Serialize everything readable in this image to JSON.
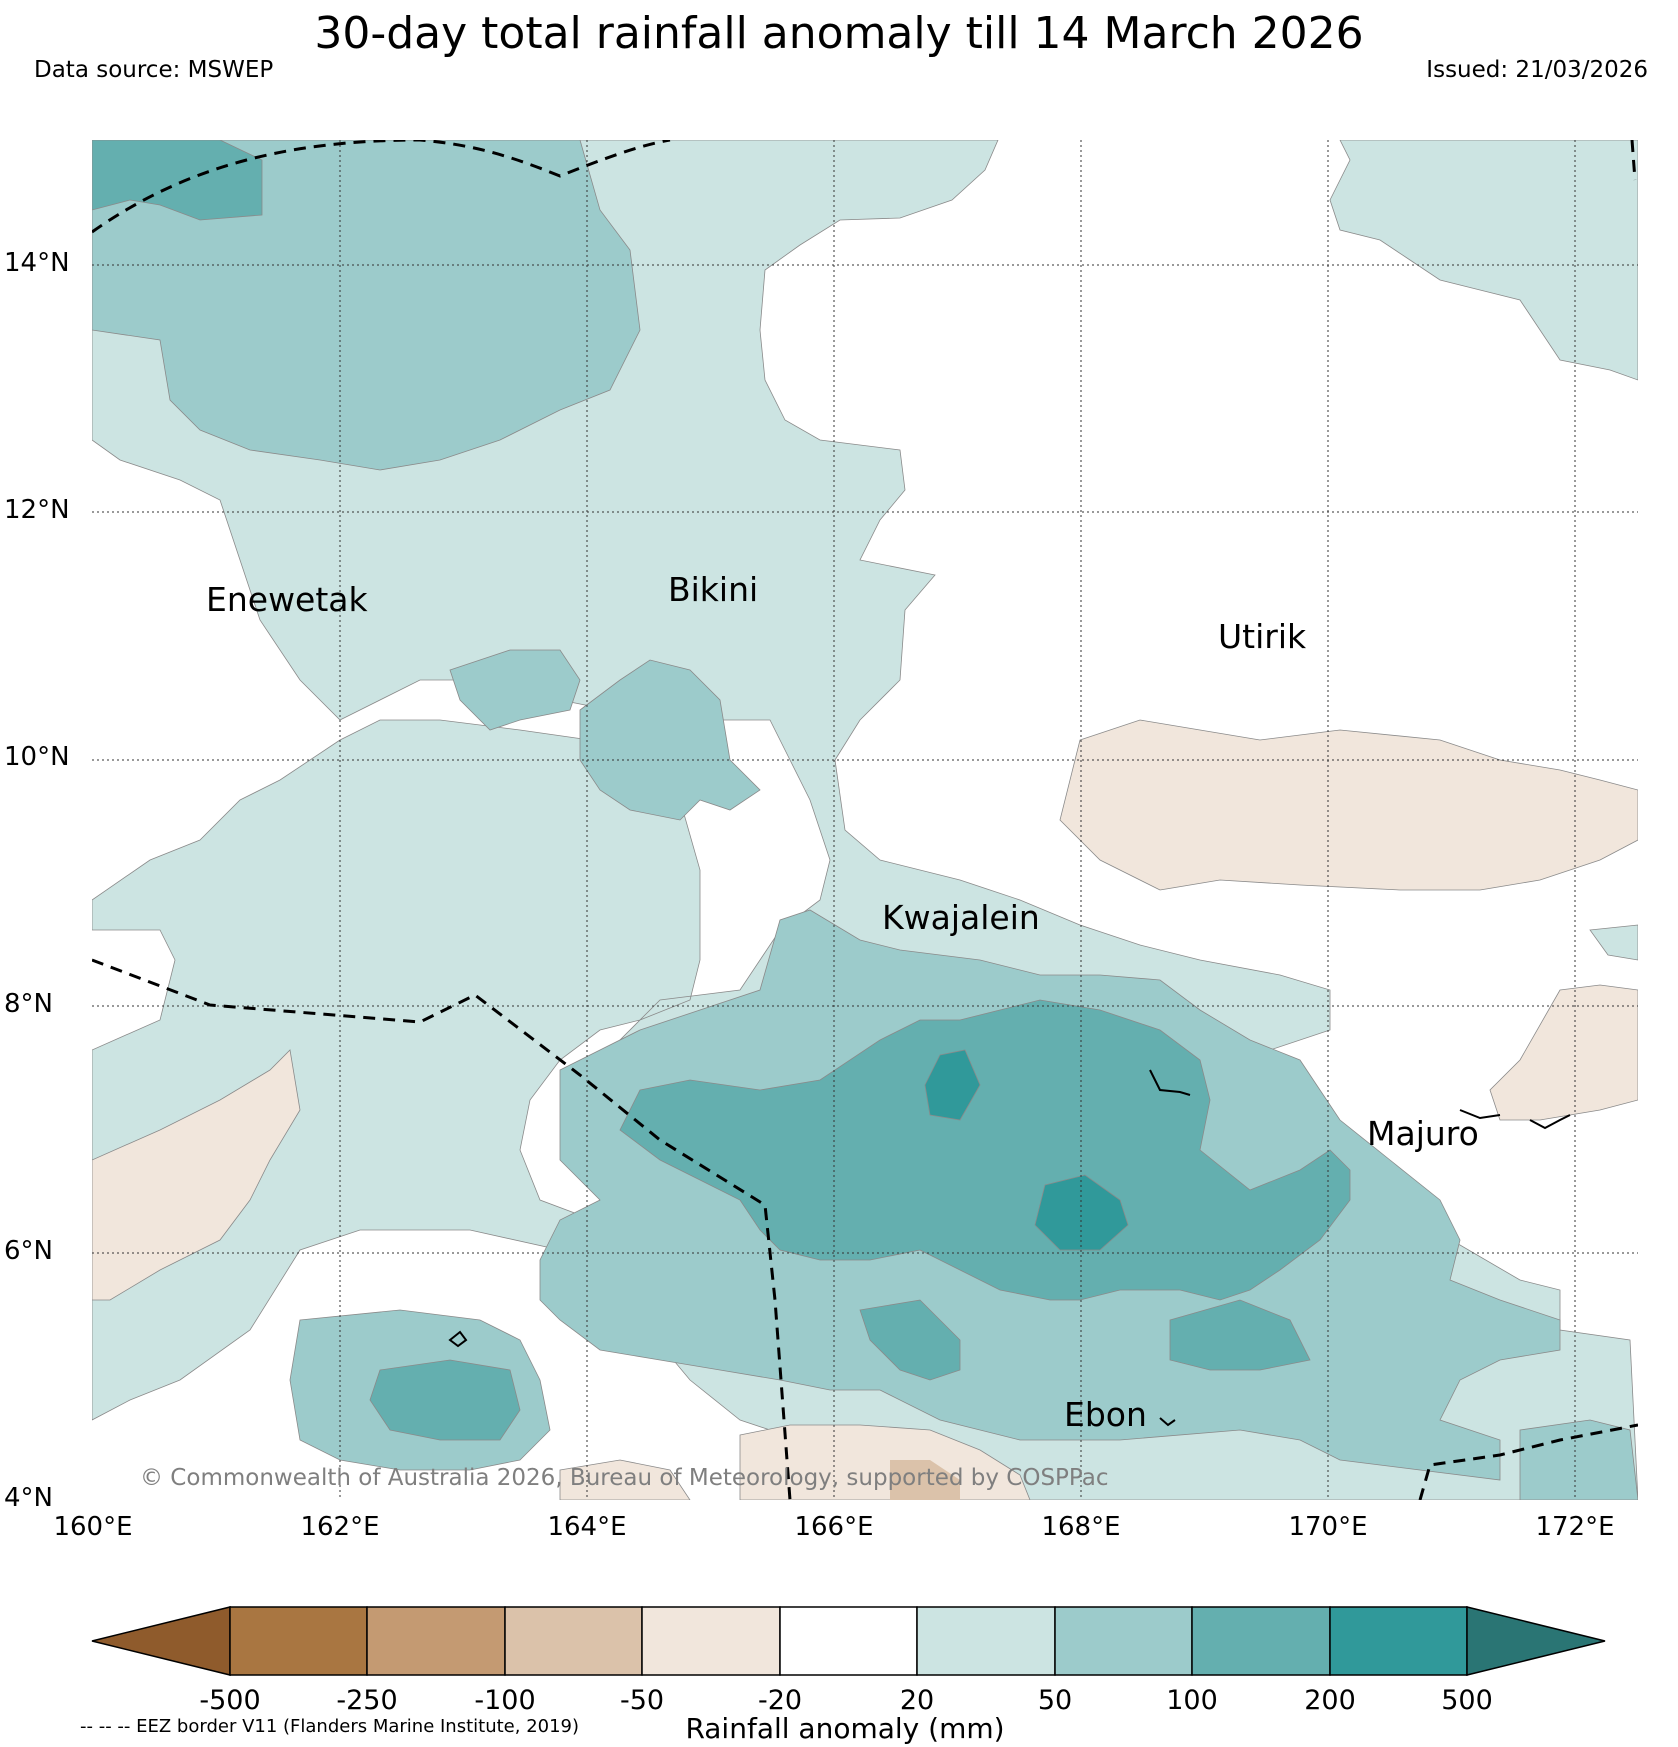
{
  "title": "30-day total rainfall anomaly till 14 March 2026",
  "data_source": "Data source: MSWEP",
  "issued": "Issued: 21/03/2026",
  "copyright": "© Commonwealth of Australia 2026, Bureau of Meteorology, supported by COSPPac",
  "map": {
    "lat_labels": [
      "14°N",
      "12°N",
      "10°N",
      "8°N",
      "6°N",
      "4°N"
    ],
    "lon_labels": [
      "160°E",
      "162°E",
      "164°E",
      "166°E",
      "168°E",
      "170°E",
      "172°E"
    ],
    "places": [
      "Enewetak",
      "Bikini",
      "Utirik",
      "Kwajalein",
      "Majuro",
      "Ebon"
    ]
  },
  "colorbar": {
    "title": "Rainfall anomaly (mm)",
    "ticks": [
      "-500",
      "-250",
      "-100",
      "-50",
      "-20",
      "20",
      "50",
      "100",
      "200",
      "500"
    ],
    "colors": [
      "#8f5b2c",
      "#a97641",
      "#c49a72",
      "#dbc2aa",
      "#f1e6dc",
      "#ffffff",
      "#cce4e2",
      "#9ccbcb",
      "#64afaf",
      "#30999a",
      "#2a7574"
    ]
  },
  "eez_note": "-- -- -- EEZ border V11 (Flanders Marine Institute, 2019)"
}
